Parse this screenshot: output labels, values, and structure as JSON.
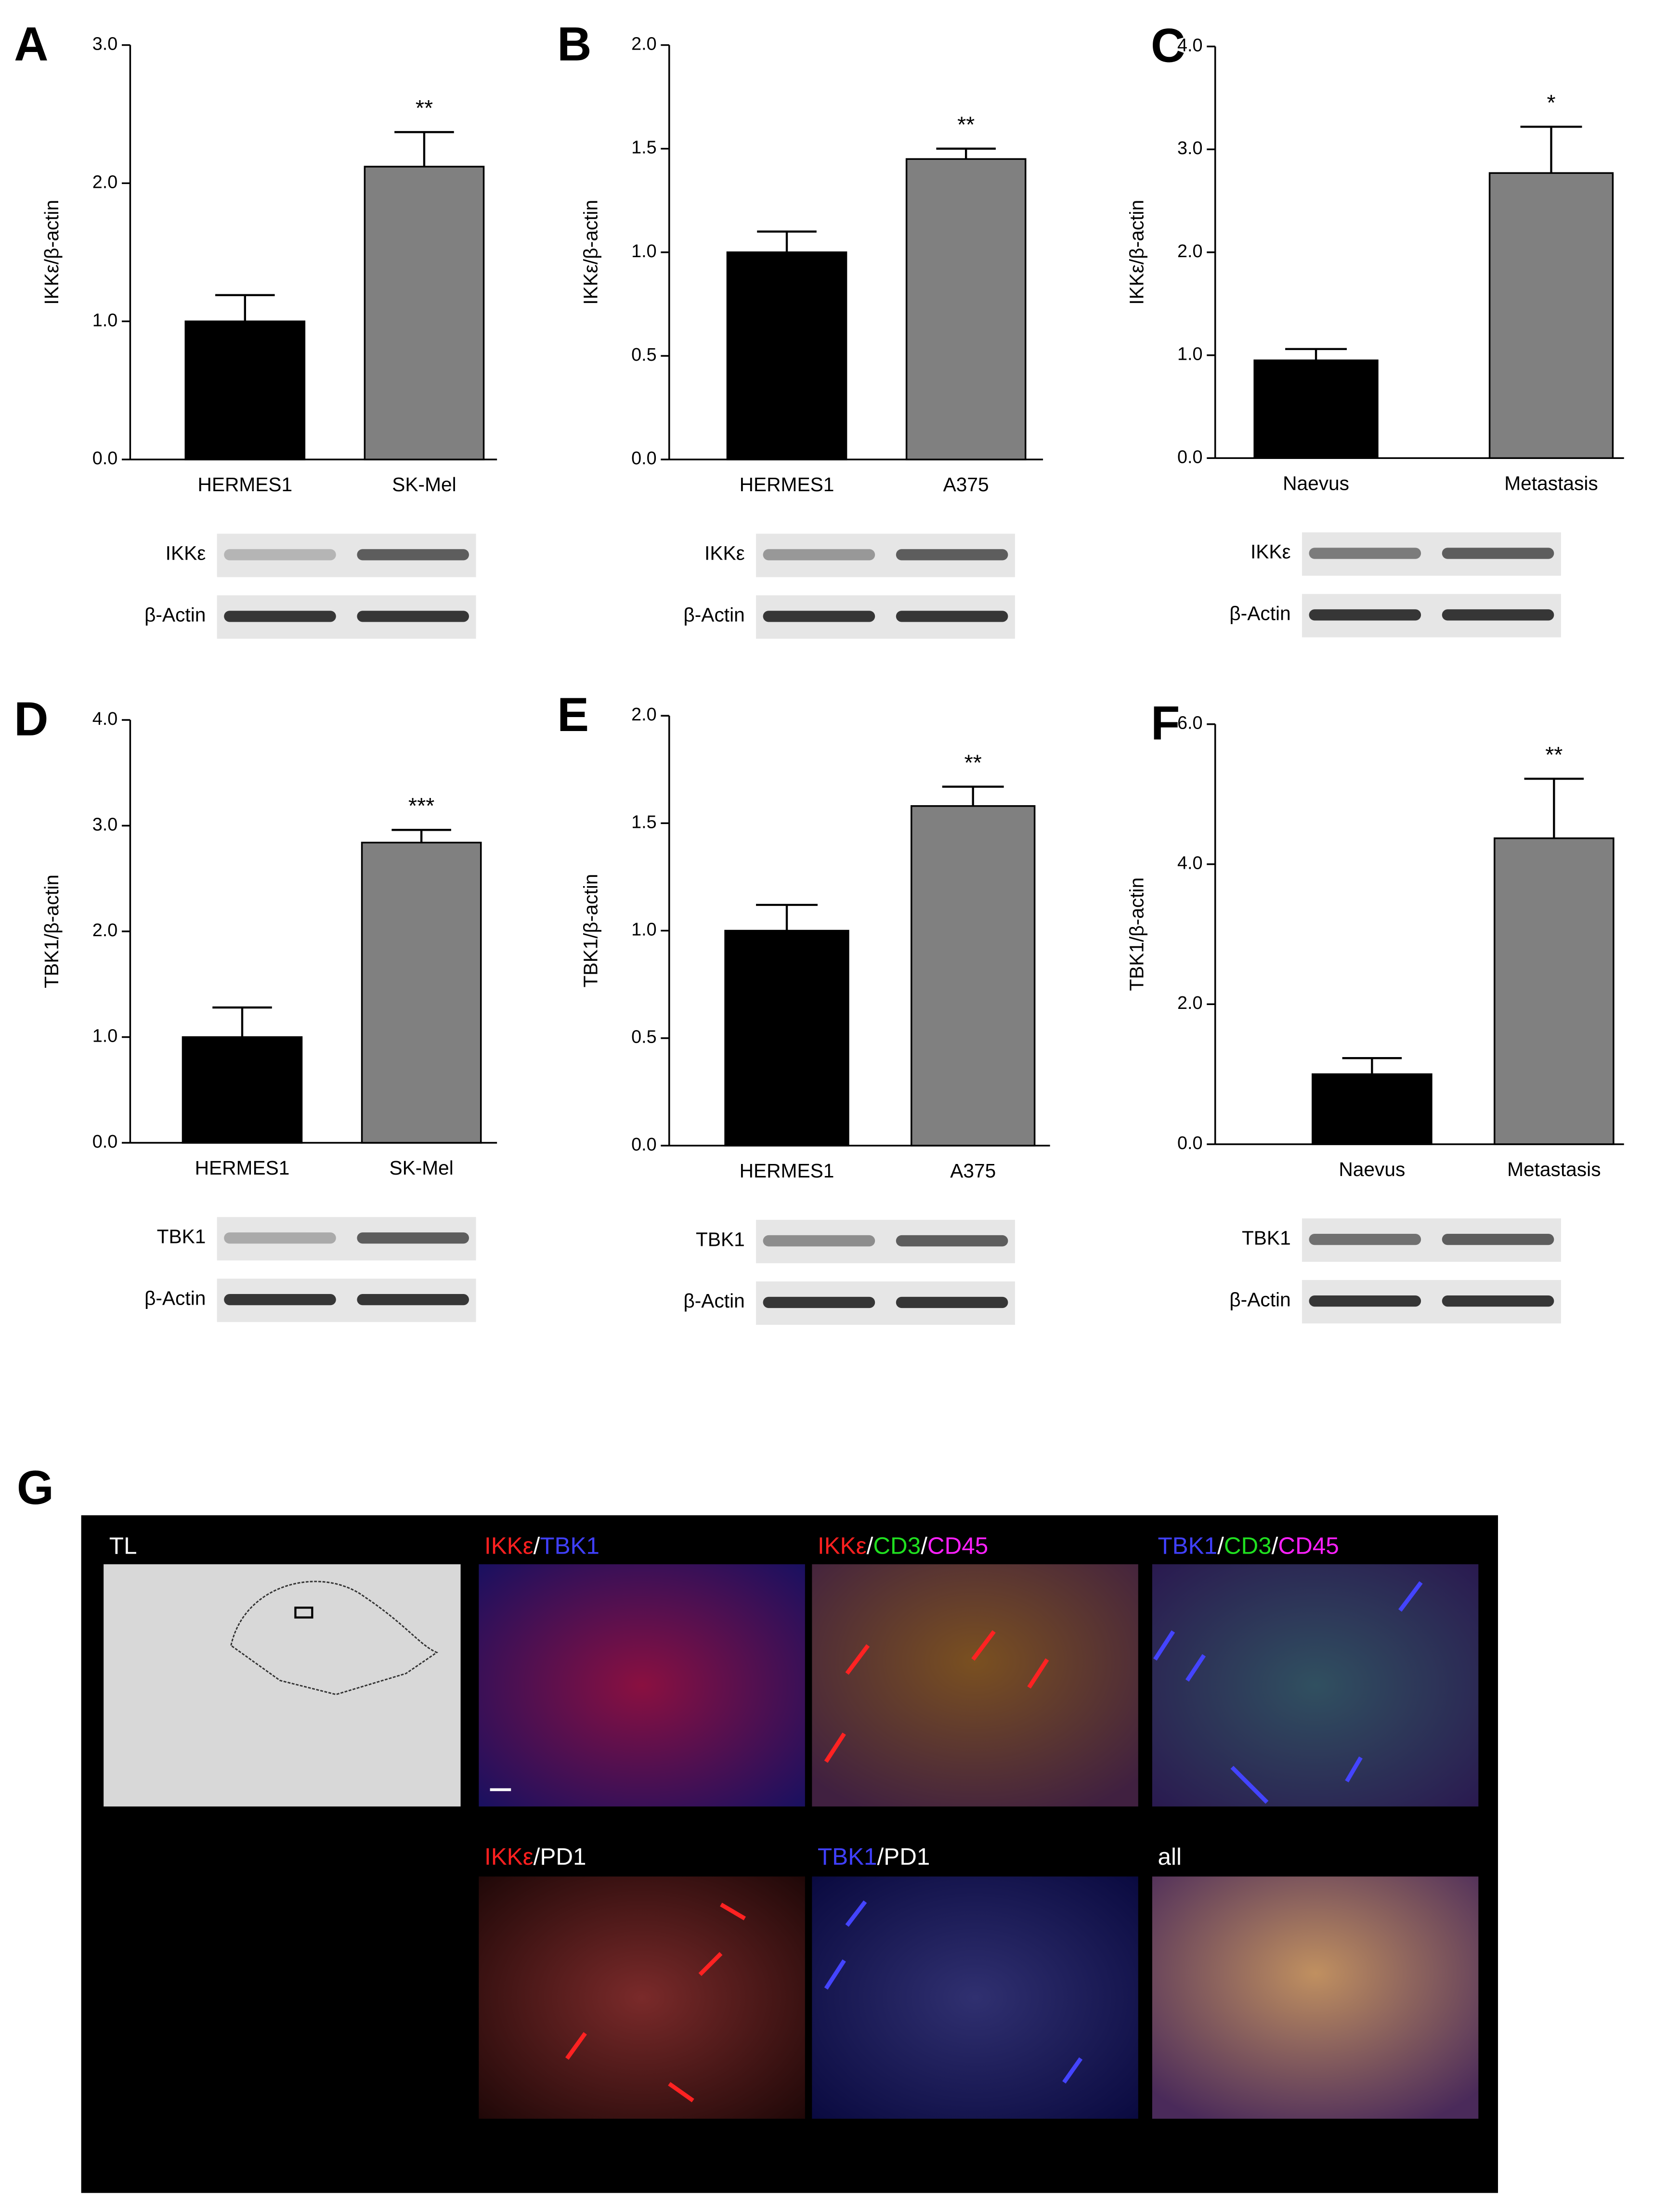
{
  "chart_data": [
    {
      "type": "bar",
      "panel": "A",
      "ylabel": "IKKε/β-actin",
      "categories": [
        "HERMES1",
        "SK-Mel"
      ],
      "values": [
        1.0,
        2.12
      ],
      "errors": [
        0.19,
        0.25
      ],
      "colors": [
        "#000000",
        "#808080"
      ],
      "annotation": "**",
      "ylim": [
        0,
        3
      ],
      "yticks": [
        {
          "value": 0,
          "label": "0.0"
        },
        {
          "value": 1,
          "label": "1.0"
        },
        {
          "value": 2,
          "label": "2.0"
        },
        {
          "value": 3,
          "label": "3.0"
        }
      ],
      "blot_labels": [
        "IKKε",
        "β-Actin"
      ]
    },
    {
      "type": "bar",
      "panel": "B",
      "ylabel": "IKKε/β-actin",
      "categories": [
        "HERMES1",
        "A375"
      ],
      "values": [
        1.0,
        1.45
      ],
      "errors": [
        0.1,
        0.05
      ],
      "colors": [
        "#000000",
        "#808080"
      ],
      "annotation": "**",
      "ylim": [
        0,
        2
      ],
      "yticks": [
        {
          "value": 0,
          "label": "0.0"
        },
        0.5,
        {
          "value": 1,
          "label": "1.0"
        },
        1.5,
        {
          "value": 2,
          "label": "2.0"
        }
      ],
      "blot_labels": [
        "IKKε",
        "β-Actin"
      ]
    },
    {
      "type": "bar",
      "panel": "C",
      "ylabel": "IKKε/β-actin",
      "categories": [
        "Naevus",
        "Metastasis"
      ],
      "values": [
        0.95,
        2.77
      ],
      "errors": [
        0.11,
        0.45
      ],
      "colors": [
        "#000000",
        "#808080"
      ],
      "annotation": "*",
      "ylim": [
        0,
        4
      ],
      "yticks": [
        {
          "value": 0,
          "label": "0.0"
        },
        {
          "value": 1,
          "label": "1.0"
        },
        {
          "value": 2,
          "label": "2.0"
        },
        {
          "value": 3,
          "label": "3.0"
        },
        {
          "value": 4,
          "label": "4.0"
        }
      ],
      "blot_labels": [
        "IKKε",
        "β-Actin"
      ]
    },
    {
      "type": "bar",
      "panel": "D",
      "ylabel": "TBK1/β-actin",
      "categories": [
        "HERMES1",
        "SK-Mel"
      ],
      "values": [
        1.0,
        2.84
      ],
      "errors": [
        0.28,
        0.12
      ],
      "colors": [
        "#000000",
        "#808080"
      ],
      "annotation": "***",
      "ylim": [
        0,
        4
      ],
      "yticks": [
        {
          "value": 0,
          "label": "0.0"
        },
        {
          "value": 1,
          "label": "1.0"
        },
        {
          "value": 2,
          "label": "2.0"
        },
        {
          "value": 3,
          "label": "3.0"
        },
        {
          "value": 4,
          "label": "4.0"
        }
      ],
      "blot_labels": [
        "TBK1",
        "β-Actin"
      ]
    },
    {
      "type": "bar",
      "panel": "E",
      "ylabel": "TBK1/β-actin",
      "categories": [
        "HERMES1",
        "A375"
      ],
      "values": [
        1.0,
        1.58
      ],
      "errors": [
        0.12,
        0.09
      ],
      "colors": [
        "#000000",
        "#808080"
      ],
      "annotation": "**",
      "ylim": [
        0,
        2
      ],
      "yticks": [
        {
          "value": 0,
          "label": "0.0"
        },
        0.5,
        {
          "value": 1,
          "label": "1.0"
        },
        1.5,
        {
          "value": 2,
          "label": "2.0"
        }
      ],
      "blot_labels": [
        "TBK1",
        "β-Actin"
      ]
    },
    {
      "type": "bar",
      "panel": "F",
      "ylabel": "TBK1/β-actin",
      "categories": [
        "Naevus",
        "Metastasis"
      ],
      "values": [
        1.0,
        4.37
      ],
      "errors": [
        0.23,
        0.85
      ],
      "colors": [
        "#000000",
        "#808080"
      ],
      "annotation": "**",
      "ylim": [
        0,
        6
      ],
      "yticks": [
        {
          "value": 0,
          "label": "0.0"
        },
        {
          "value": 2,
          "label": "2.0"
        },
        {
          "value": 4,
          "label": "4.0"
        },
        {
          "value": 6,
          "label": "6.0"
        }
      ],
      "blot_labels": [
        "TBK1",
        "β-Actin"
      ]
    }
  ],
  "panel_g": {
    "panel": "G",
    "tiles": [
      {
        "segments": [
          {
            "text": "TL",
            "color": "#ffffff"
          }
        ]
      },
      {
        "segments": [
          {
            "text": "IKKε",
            "color": "#ff2020"
          },
          {
            "text": "/",
            "color": "#ffffff"
          },
          {
            "text": "TBK1",
            "color": "#4040ff"
          }
        ]
      },
      {
        "segments": [
          {
            "text": "IKKε",
            "color": "#ff2020"
          },
          {
            "text": "/",
            "color": "#ffffff"
          },
          {
            "text": "CD3",
            "color": "#20e020"
          },
          {
            "text": "/",
            "color": "#ffffff"
          },
          {
            "text": "CD45",
            "color": "#ff20ff"
          }
        ]
      },
      {
        "segments": [
          {
            "text": "TBK1",
            "color": "#4040ff"
          },
          {
            "text": "/",
            "color": "#ffffff"
          },
          {
            "text": "CD3",
            "color": "#20e020"
          },
          {
            "text": "/",
            "color": "#ffffff"
          },
          {
            "text": "CD45",
            "color": "#ff20ff"
          }
        ]
      },
      {
        "segments": [
          {
            "text": "IKKε",
            "color": "#ff2020"
          },
          {
            "text": "/",
            "color": "#ffffff"
          },
          {
            "text": "PD1",
            "color": "#ffffff"
          }
        ]
      },
      {
        "segments": [
          {
            "text": "TBK1",
            "color": "#4040ff"
          },
          {
            "text": "/",
            "color": "#ffffff"
          },
          {
            "text": "PD1",
            "color": "#ffffff"
          }
        ]
      },
      {
        "segments": [
          {
            "text": "all",
            "color": "#ffffff"
          }
        ]
      }
    ]
  }
}
